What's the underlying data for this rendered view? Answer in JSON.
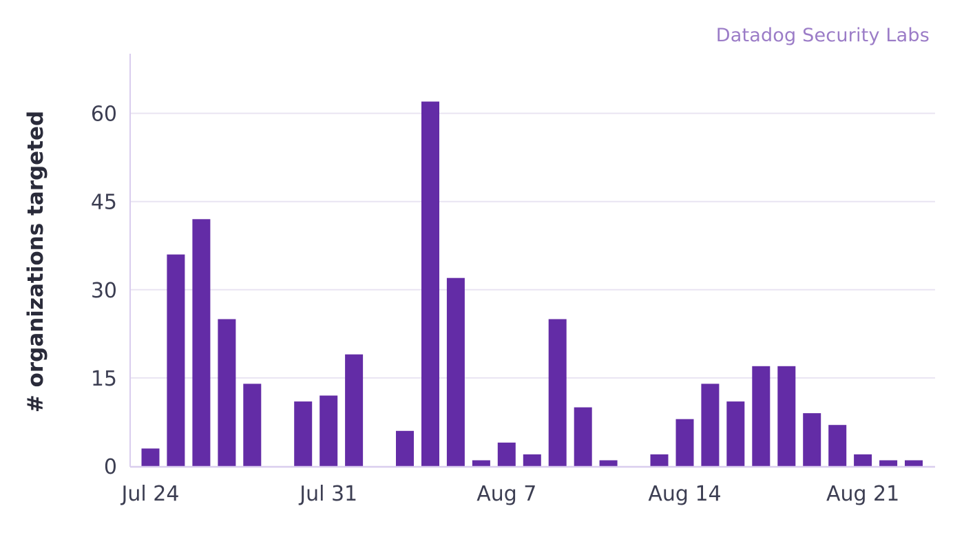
{
  "watermark": "Datadog Security Labs",
  "colors": {
    "bar": "#632ca6",
    "grid": "#e9e4f2",
    "axis": "#d9cdee",
    "tick_text": "#3c3e52",
    "ylabel_text": "#2a2b3a",
    "watermark": "#9b7cc7"
  },
  "chart_data": {
    "type": "bar",
    "title": "",
    "xlabel": "",
    "ylabel": "# organizations targeted",
    "ylim": [
      0,
      70
    ],
    "yticks": [
      0,
      15,
      30,
      45,
      60
    ],
    "grid": true,
    "x_tick_labels": [
      {
        "label": "Jul 24",
        "date": "2023-07-24"
      },
      {
        "label": "Jul 31",
        "date": "2023-07-31"
      },
      {
        "label": "Aug 7",
        "date": "2023-08-07"
      },
      {
        "label": "Aug 14",
        "date": "2023-08-14"
      },
      {
        "label": "Aug 21",
        "date": "2023-08-21"
      }
    ],
    "x": [
      "2023-07-24",
      "2023-07-25",
      "2023-07-26",
      "2023-07-27",
      "2023-07-28",
      "2023-07-29",
      "2023-07-30",
      "2023-07-31",
      "2023-08-01",
      "2023-08-02",
      "2023-08-03",
      "2023-08-04",
      "2023-08-05",
      "2023-08-06",
      "2023-08-07",
      "2023-08-08",
      "2023-08-09",
      "2023-08-10",
      "2023-08-11",
      "2023-08-12",
      "2023-08-13",
      "2023-08-14",
      "2023-08-15",
      "2023-08-16",
      "2023-08-17",
      "2023-08-18",
      "2023-08-19",
      "2023-08-20",
      "2023-08-21",
      "2023-08-22",
      "2023-08-23",
      "2023-08-24"
    ],
    "values": [
      3,
      36,
      42,
      25,
      14,
      0,
      11,
      12,
      19,
      0,
      6,
      62,
      32,
      1,
      4,
      2,
      25,
      10,
      1,
      0,
      2,
      8,
      14,
      11,
      17,
      17,
      9,
      7,
      2,
      1,
      1,
      0
    ]
  }
}
